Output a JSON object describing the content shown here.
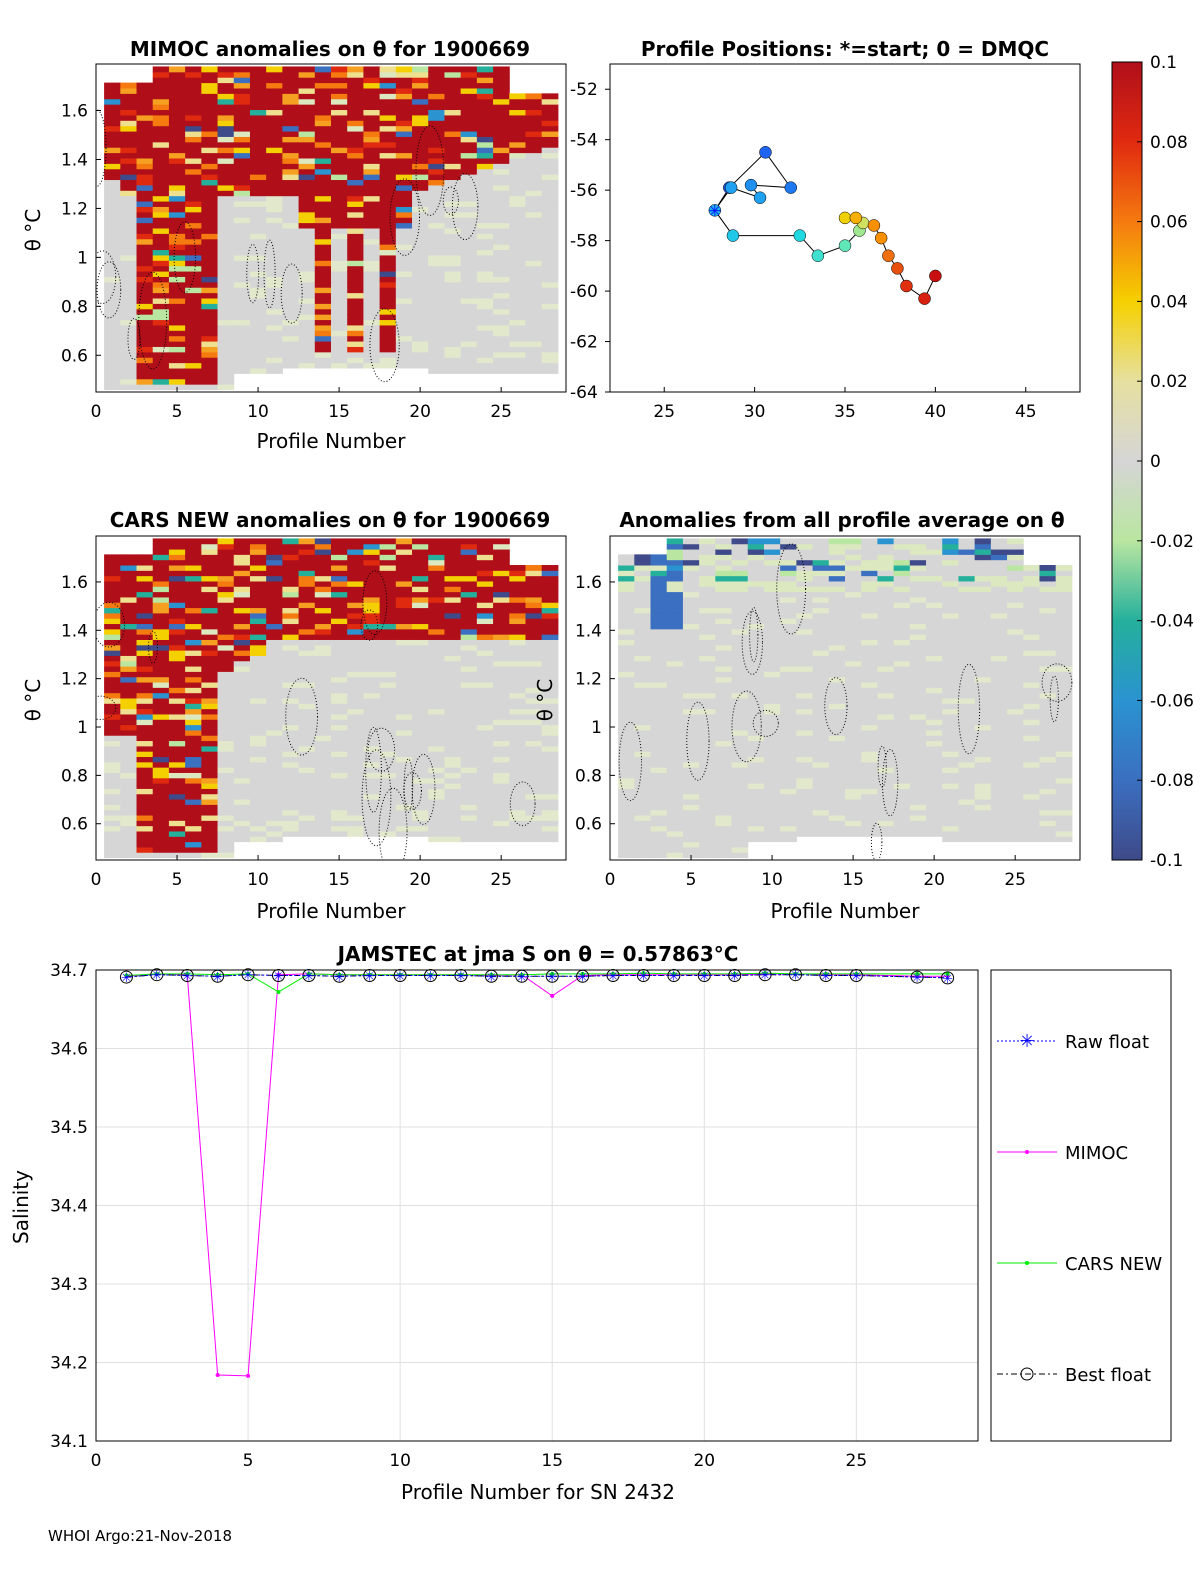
{
  "chart_data": [
    {
      "id": "mimoc",
      "type": "heatmap",
      "title": "MIMOC anomalies on θ  for 1900669",
      "xlabel": "Profile Number",
      "ylabel": "θ °C",
      "xlim": [
        0,
        29
      ],
      "ylim": [
        0.45,
        1.79
      ],
      "xticks": [
        "0",
        "5",
        "10",
        "15",
        "20",
        "25"
      ],
      "yticks": [
        "0.6",
        "0.8",
        "1",
        "1.2",
        "1.4",
        "1.6"
      ],
      "profiles": 28,
      "description_values": "mostly positive anomalies (~0.1) above 1.2 °C, near zero below"
    },
    {
      "id": "positions",
      "type": "line",
      "title": "Profile Positions: *=start; 0 = DMQC",
      "xlim": [
        22,
        48
      ],
      "ylim": [
        -64,
        -51
      ],
      "xticks": [
        "25",
        "30",
        "35",
        "40",
        "45"
      ],
      "yticks": [
        "-52",
        "-54",
        "-56",
        "-58",
        "-60",
        "-62",
        "-64"
      ],
      "x": [
        27.8,
        28.6,
        30.6,
        32.0,
        29.8,
        30.3,
        28.7,
        27.8,
        28.8,
        32.5,
        33.5,
        35.0,
        35.8,
        36.0,
        35.0,
        35.6,
        36.6,
        37.0,
        37.4,
        37.9,
        38.4,
        39.4,
        40.0
      ],
      "y": [
        -56.8,
        -55.9,
        -54.5,
        -55.9,
        -55.8,
        -56.3,
        -55.9,
        -56.8,
        -57.8,
        -57.8,
        -58.6,
        -58.2,
        -57.6,
        -57.3,
        -57.1,
        -57.1,
        -57.4,
        -57.9,
        -58.6,
        -59.1,
        -59.8,
        -60.3,
        -59.4
      ]
    },
    {
      "id": "cars",
      "type": "heatmap",
      "title": "CARS NEW anomalies on θ for 1900669",
      "xlabel": "Profile Number",
      "ylabel": "θ °C",
      "xlim": [
        0,
        29
      ],
      "ylim": [
        0.45,
        1.79
      ],
      "xticks": [
        "0",
        "5",
        "10",
        "15",
        "20",
        "25"
      ],
      "yticks": [
        "0.6",
        "0.8",
        "1",
        "1.2",
        "1.4",
        "1.6"
      ]
    },
    {
      "id": "allavg",
      "type": "heatmap",
      "title": "Anomalies from all profile average on θ",
      "xlabel": "Profile Number",
      "ylabel": "θ °C",
      "xlim": [
        0,
        29
      ],
      "ylim": [
        0.45,
        1.79
      ],
      "xticks": [
        "0",
        "5",
        "10",
        "15",
        "20",
        "25"
      ],
      "yticks": [
        "0.6",
        "0.8",
        "1",
        "1.2",
        "1.4",
        "1.6"
      ]
    },
    {
      "id": "colorbar",
      "type": "heatmap",
      "range": [
        -0.1,
        0.1
      ],
      "ticks": [
        "0.1",
        "0.08",
        "0.06",
        "0.04",
        "0.02",
        "0",
        "-0.02",
        "-0.04",
        "-0.06",
        "-0.08",
        "-0.1"
      ]
    },
    {
      "id": "salinity",
      "type": "line",
      "title": "JAMSTEC at jma S on θ = 0.57863°C",
      "xlabel": "Profile Number for SN 2432",
      "ylabel": "Salinity",
      "xlim": [
        0,
        29
      ],
      "ylim": [
        34.1,
        34.7
      ],
      "xticks": [
        "0",
        "5",
        "10",
        "15",
        "20",
        "25"
      ],
      "yticks": [
        "34.1",
        "34.2",
        "34.3",
        "34.4",
        "34.5",
        "34.6",
        "34.7"
      ],
      "x": [
        1,
        2,
        3,
        4,
        5,
        6,
        7,
        8,
        9,
        10,
        11,
        12,
        13,
        14,
        15,
        16,
        17,
        18,
        19,
        20,
        21,
        22,
        23,
        24,
        25,
        27,
        28
      ],
      "series": [
        {
          "name": "Raw float",
          "values": [
            34.691,
            34.694,
            34.693,
            34.692,
            34.694,
            34.693,
            34.693,
            34.692,
            34.693,
            34.693,
            34.693,
            34.693,
            34.692,
            34.692,
            34.692,
            34.692,
            34.693,
            34.693,
            34.693,
            34.693,
            34.693,
            34.694,
            34.694,
            34.693,
            34.693,
            34.691,
            34.69
          ],
          "color": "#0000ff"
        },
        {
          "name": "MIMOC",
          "values": [
            34.692,
            34.695,
            34.694,
            34.184,
            34.183,
            34.694,
            34.695,
            34.694,
            34.694,
            34.694,
            34.694,
            34.694,
            34.693,
            34.694,
            34.667,
            34.693,
            34.694,
            34.694,
            34.694,
            34.694,
            34.694,
            34.695,
            34.695,
            34.694,
            34.694,
            34.692,
            34.692
          ],
          "color": "#ff00ff"
        },
        {
          "name": "CARS NEW",
          "values": [
            34.693,
            34.695,
            34.695,
            34.694,
            34.695,
            34.672,
            34.695,
            34.694,
            34.694,
            34.694,
            34.694,
            34.694,
            34.694,
            34.694,
            34.695,
            34.695,
            34.695,
            34.696,
            34.695,
            34.695,
            34.695,
            34.696,
            34.695,
            34.695,
            34.695,
            34.695,
            34.695
          ],
          "color": "#00ee00"
        },
        {
          "name": "Best float",
          "values": [
            34.691,
            34.694,
            34.693,
            34.692,
            34.694,
            34.693,
            34.693,
            34.692,
            34.693,
            34.693,
            34.693,
            34.693,
            34.692,
            34.692,
            34.692,
            34.692,
            34.693,
            34.693,
            34.693,
            34.693,
            34.693,
            34.694,
            34.694,
            34.693,
            34.693,
            34.691,
            34.69
          ],
          "color": "#000000"
        }
      ]
    }
  ],
  "footer": "WHOI Argo:21-Nov-2018"
}
